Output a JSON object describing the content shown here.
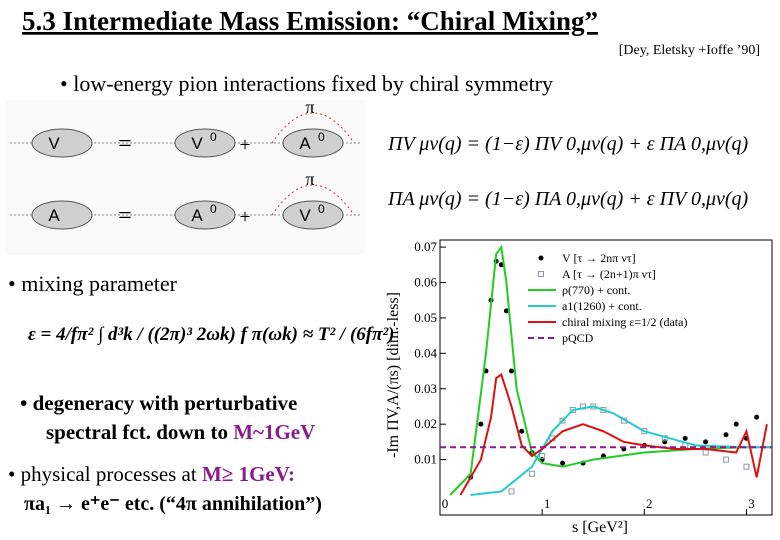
{
  "title": "5.3 Intermediate Mass Emission: “Chiral Mixing”",
  "reference": "[Dey, Eletsky +Ioffe ’90]",
  "bullets": {
    "b1": "• low-energy pion interactions fixed by chiral symmetry",
    "b2": "• mixing parameter",
    "b3a": "• degeneracy with perturbative",
    "b3b": "spectral fct. down to ",
    "b3c": "M~1GeV",
    "b4a": "• physical processes at ",
    "b4b": "M≥ 1GeV:",
    "b4c": "πa₁ → e⁺e⁻  etc.  (“4π annihilation”)"
  },
  "diagrams": {
    "rows": [
      {
        "lhs": "V",
        "eq": "=",
        "t1": "V",
        "t1sup": "0",
        "plus": "+",
        "t2": "A",
        "t2sup": "0",
        "pi": "π"
      },
      {
        "lhs": "A",
        "eq": "=",
        "t1": "A",
        "t1sup": "0",
        "plus": "+",
        "t2": "V",
        "t2sup": "0",
        "pi": "π"
      }
    ]
  },
  "equations": [
    "ΠV μν(q) = (1−ε) ΠV 0,μν(q) + ε ΠA 0,μν(q)",
    "ΠA μν(q) = (1−ε) ΠA 0,μν(q) + ε ΠV 0,μν(q)"
  ],
  "mixing_formula": "ε = 4/fπ² ∫ d³k / ((2π)³ 2ωk) f π(ωk)  ≈  T² / (6fπ²)",
  "chart_data": {
    "type": "line",
    "xlabel": "s [GeV²]",
    "ylabel": "-Im ΠV,A/(πs) [dim.-less]",
    "xlim": [
      0,
      3.25
    ],
    "ylim": [
      0,
      0.072
    ],
    "xticks": [
      0,
      1,
      2,
      3
    ],
    "yticks": [
      0.01,
      0.02,
      0.03,
      0.04,
      0.05,
      0.06,
      0.07
    ],
    "series": [
      {
        "name": "V [τ → 2nπ ντ]",
        "color": "#000000",
        "marker": "circle",
        "x": [
          0.3,
          0.4,
          0.45,
          0.5,
          0.55,
          0.6,
          0.65,
          0.7,
          0.8,
          0.9,
          1.0,
          1.2,
          1.4,
          1.6,
          1.8,
          2.0,
          2.2,
          2.4,
          2.6,
          2.8,
          2.9,
          3.0,
          3.1
        ],
        "values": [
          0.005,
          0.02,
          0.035,
          0.055,
          0.066,
          0.065,
          0.052,
          0.035,
          0.018,
          0.012,
          0.01,
          0.009,
          0.009,
          0.011,
          0.013,
          0.014,
          0.015,
          0.016,
          0.015,
          0.017,
          0.02,
          0.016,
          0.022
        ]
      },
      {
        "name": "A [τ → (2n+1)π ντ]",
        "color": "#8a9aa6",
        "marker": "square",
        "x": [
          0.7,
          0.9,
          1.0,
          1.1,
          1.2,
          1.3,
          1.4,
          1.5,
          1.6,
          1.8,
          2.0,
          2.2,
          2.4,
          2.6,
          2.8,
          3.0
        ],
        "values": [
          0.001,
          0.006,
          0.011,
          0.016,
          0.021,
          0.024,
          0.025,
          0.025,
          0.024,
          0.021,
          0.018,
          0.016,
          0.014,
          0.012,
          0.01,
          0.008
        ]
      },
      {
        "name": "ρ(770) + cont.",
        "color": "#22cc22",
        "marker": "none",
        "x": [
          0.1,
          0.3,
          0.45,
          0.55,
          0.6,
          0.65,
          0.75,
          0.9,
          1.0,
          1.2,
          1.5,
          2.0,
          2.5,
          3.0,
          3.25
        ],
        "values": [
          0.0,
          0.006,
          0.04,
          0.068,
          0.07,
          0.06,
          0.03,
          0.012,
          0.009,
          0.008,
          0.01,
          0.012,
          0.013,
          0.0135,
          0.0135
        ]
      },
      {
        "name": "a1(1260) + cont.",
        "color": "#22cccc",
        "marker": "none",
        "x": [
          0.3,
          0.6,
          0.9,
          1.1,
          1.3,
          1.5,
          1.7,
          2.0,
          2.5,
          3.0,
          3.25
        ],
        "values": [
          0.0,
          0.001,
          0.008,
          0.018,
          0.024,
          0.025,
          0.023,
          0.018,
          0.014,
          0.0135,
          0.0135
        ]
      },
      {
        "name": "chiral mixing ε=1/2 (data)",
        "color": "#dd1111",
        "marker": "none",
        "x": [
          0.2,
          0.4,
          0.5,
          0.55,
          0.6,
          0.7,
          0.8,
          0.9,
          1.0,
          1.2,
          1.4,
          1.6,
          1.8,
          2.0,
          2.3,
          2.6,
          2.9,
          3.0,
          3.1,
          3.2
        ],
        "values": [
          0.0,
          0.01,
          0.022,
          0.033,
          0.034,
          0.025,
          0.014,
          0.011,
          0.013,
          0.018,
          0.02,
          0.018,
          0.015,
          0.014,
          0.013,
          0.013,
          0.012,
          0.018,
          0.005,
          0.02
        ]
      },
      {
        "name": "pQCD",
        "color": "#8b1a8b",
        "marker": "none",
        "dashed": true,
        "x": [
          0,
          3.25
        ],
        "values": [
          0.0135,
          0.0135
        ]
      }
    ]
  }
}
